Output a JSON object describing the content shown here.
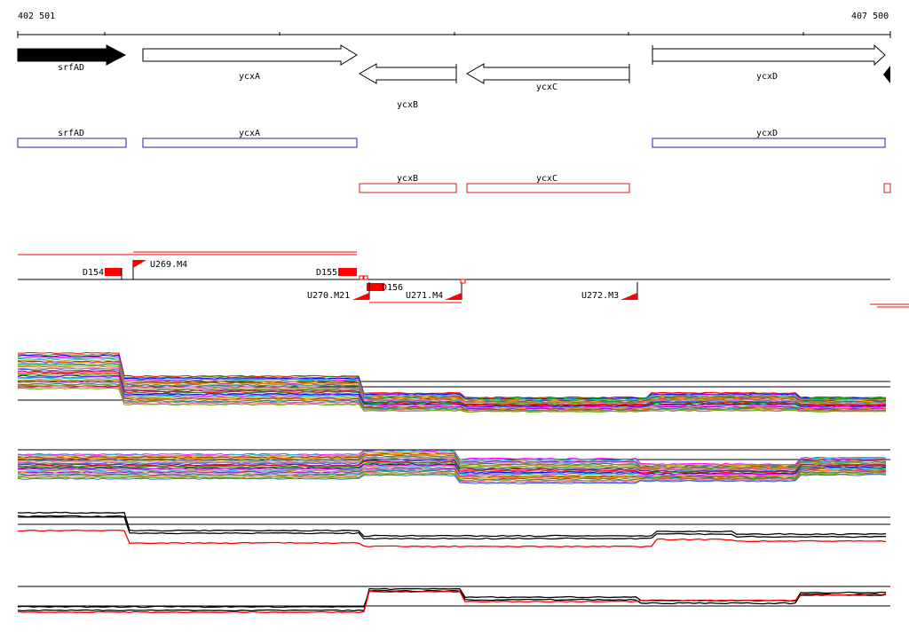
{
  "coordinates": {
    "start": "402 501",
    "end": "407 500"
  },
  "colors": {
    "gene_fill": "#ffffff",
    "gene_fill_highlight": "#000000",
    "cds_forward": "#1c1cb4",
    "cds_reverse": "#d01c1c",
    "feature_red": "#ff0000",
    "axis": "#000000"
  },
  "genes": [
    {
      "name": "srfAD",
      "strand": "+",
      "highlight": true
    },
    {
      "name": "ycxA",
      "strand": "+"
    },
    {
      "name": "ycxB",
      "strand": "-"
    },
    {
      "name": "ycxC",
      "strand": "-"
    },
    {
      "name": "ycxD",
      "strand": "+"
    }
  ],
  "cds_forward": [
    {
      "name": "srfAD"
    },
    {
      "name": "ycxA"
    },
    {
      "name": "ycxD"
    }
  ],
  "cds_reverse": [
    {
      "name": "ycxB"
    },
    {
      "name": "ycxC"
    }
  ],
  "features": [
    {
      "name": "D154"
    },
    {
      "name": "U269.M4"
    },
    {
      "name": "D155"
    },
    {
      "name": "D156"
    },
    {
      "name": "U270.M21"
    },
    {
      "name": "U271.M4"
    },
    {
      "name": "U272.M3"
    }
  ],
  "expression_panels": [
    {
      "id": "panel1"
    },
    {
      "id": "panel2"
    },
    {
      "id": "panel3"
    },
    {
      "id": "panel4"
    }
  ]
}
